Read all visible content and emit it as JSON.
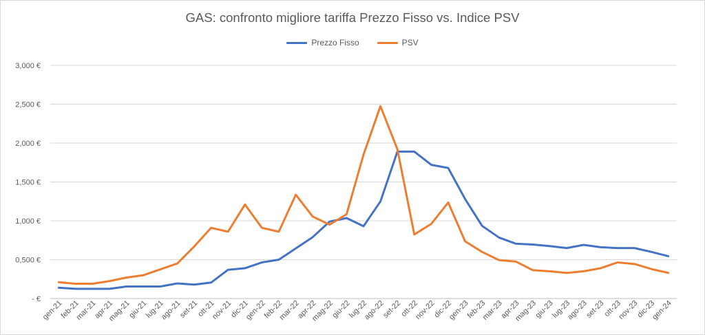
{
  "chart_data": {
    "type": "line",
    "title": "GAS: confronto migliore tariffa Prezzo Fisso vs. Indice PSV",
    "xlabel": "",
    "ylabel": "",
    "legend_position": "top-center",
    "grid": true,
    "ylim": [
      0,
      3.0
    ],
    "y_ticks": [
      {
        "value": 0,
        "label": "-   €"
      },
      {
        "value": 0.5,
        "label": "0,500 €"
      },
      {
        "value": 1.0,
        "label": "1,000 €"
      },
      {
        "value": 1.5,
        "label": "1,500 €"
      },
      {
        "value": 2.0,
        "label": "2,000 €"
      },
      {
        "value": 2.5,
        "label": "2,500 €"
      },
      {
        "value": 3.0,
        "label": "3,000 €"
      }
    ],
    "categories": [
      "gen-21",
      "feb-21",
      "mar-21",
      "apr-21",
      "mag-21",
      "giu-21",
      "lug-21",
      "ago-21",
      "set-21",
      "ott-21",
      "nov-21",
      "dic-21",
      "gen-22",
      "feb-22",
      "mar-22",
      "apr-22",
      "mag-22",
      "giu-22",
      "lug-22",
      "ago-22",
      "set-22",
      "ott-22",
      "nov-22",
      "dic-22",
      "gen-23",
      "feb-23",
      "mar-23",
      "apr-23",
      "mag-23",
      "giu-23",
      "lug-23",
      "ago-23",
      "set-23",
      "ott-23",
      "nov-23",
      "dic-23",
      "gen-24"
    ],
    "series": [
      {
        "name": "Prezzo Fisso",
        "color": "#4472C4",
        "values": [
          0.14,
          0.125,
          0.125,
          0.125,
          0.155,
          0.155,
          0.155,
          0.195,
          0.18,
          0.205,
          0.37,
          0.39,
          0.465,
          0.5,
          0.645,
          0.79,
          0.99,
          1.035,
          0.93,
          1.25,
          1.89,
          1.89,
          1.72,
          1.68,
          1.28,
          0.935,
          0.785,
          0.705,
          0.695,
          0.675,
          0.65,
          0.69,
          0.66,
          0.65,
          0.65,
          0.6,
          0.545
        ]
      },
      {
        "name": "PSV",
        "color": "#ED7D31",
        "values": [
          0.21,
          0.19,
          0.19,
          0.225,
          0.27,
          0.3,
          0.375,
          0.45,
          0.67,
          0.91,
          0.86,
          1.21,
          0.91,
          0.86,
          1.335,
          1.055,
          0.95,
          1.085,
          1.85,
          2.475,
          1.92,
          0.825,
          0.96,
          1.235,
          0.735,
          0.6,
          0.495,
          0.475,
          0.365,
          0.35,
          0.33,
          0.35,
          0.39,
          0.465,
          0.445,
          0.38,
          0.33
        ]
      }
    ]
  }
}
